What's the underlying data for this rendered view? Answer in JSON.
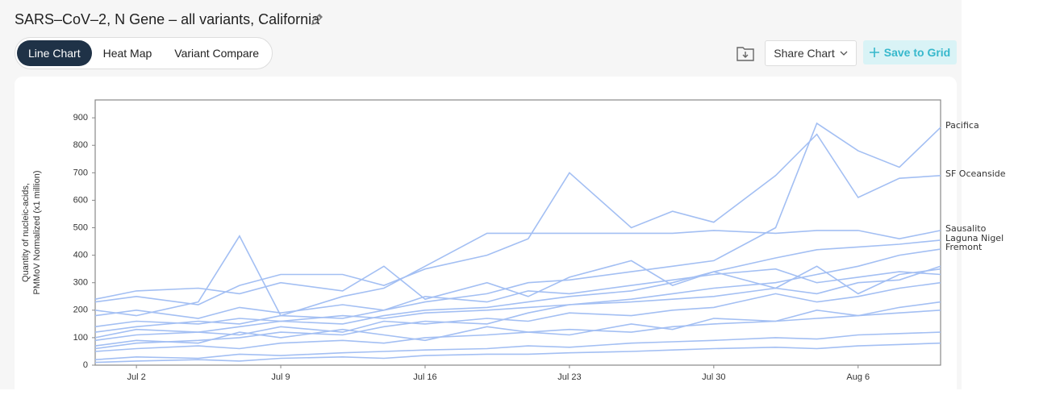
{
  "header": {
    "title": "SARS–CoV–2, N Gene – all variants, California",
    "tabs": [
      "Line Chart",
      "Heat Map",
      "Variant Compare"
    ],
    "active_tab": 0,
    "share_button": "Share Chart",
    "save_button": "Save to Grid"
  },
  "chart_data": {
    "type": "line",
    "y_label": [
      "Quantity of nucleic-acids,",
      "PMMoV Normalized (x1 million)"
    ],
    "x": [
      "Jun 30",
      "Jul 2",
      "Jul 5",
      "Jul 7",
      "Jul 9",
      "Jul 12",
      "Jul 14",
      "Jul 16",
      "Jul 19",
      "Jul 21",
      "Jul 23",
      "Jul 26",
      "Jul 28",
      "Jul 30",
      "Aug 2",
      "Aug 4",
      "Aug 6",
      "Aug 8",
      "Aug 10"
    ],
    "xlim": [
      "Jun 30",
      "Aug 10"
    ],
    "xticks": [
      "Jul 2",
      "Jul 9",
      "Jul 16",
      "Jul 23",
      "Jul 30",
      "Aug 6"
    ],
    "ylim": [
      0,
      965
    ],
    "yticks": [
      0,
      100,
      200,
      300,
      400,
      500,
      600,
      700,
      800,
      900
    ],
    "series": [
      {
        "name": "Pacifica",
        "color": "#a3bff3",
        "values": [
          120,
          140,
          160,
          150,
          180,
          170,
          200,
          230,
          260,
          300,
          310,
          340,
          360,
          380,
          500,
          880,
          780,
          720,
          865
        ]
      },
      {
        "name": "SF Oceanside",
        "color": "#a3bff3",
        "values": [
          230,
          250,
          220,
          290,
          330,
          330,
          290,
          350,
          400,
          460,
          700,
          500,
          560,
          520,
          690,
          840,
          610,
          680,
          690
        ]
      },
      {
        "name": "Sausalito",
        "color": "#a3bff3",
        "values": [
          200,
          180,
          230,
          470,
          180,
          250,
          280,
          360,
          480,
          480,
          480,
          480,
          480,
          490,
          480,
          490,
          490,
          460,
          490
        ]
      },
      {
        "name": "Laguna Nigel",
        "color": "#a3bff3",
        "values": [
          90,
          110,
          120,
          140,
          160,
          150,
          180,
          200,
          210,
          230,
          250,
          270,
          300,
          340,
          390,
          420,
          430,
          440,
          455
        ]
      },
      {
        "name": "Fremont",
        "color": "#a3bff3",
        "values": [
          60,
          80,
          90,
          100,
          120,
          110,
          140,
          160,
          150,
          190,
          220,
          240,
          260,
          280,
          300,
          330,
          360,
          400,
          422
        ]
      },
      {
        "color": "#a3bff3",
        "values": [
          20,
          30,
          25,
          40,
          35,
          45,
          50,
          55,
          60,
          70,
          65,
          80,
          85,
          90,
          100,
          95,
          110,
          115,
          120
        ]
      },
      {
        "color": "#a3bff3",
        "values": [
          180,
          200,
          170,
          210,
          190,
          220,
          200,
          250,
          230,
          270,
          260,
          290,
          310,
          330,
          350,
          300,
          320,
          340,
          330
        ]
      },
      {
        "color": "#a3bff3",
        "values": [
          100,
          130,
          120,
          110,
          140,
          120,
          160,
          150,
          170,
          160,
          190,
          180,
          200,
          210,
          260,
          230,
          250,
          280,
          300
        ]
      },
      {
        "color": "#a3bff3",
        "values": [
          50,
          60,
          70,
          60,
          80,
          90,
          80,
          100,
          110,
          120,
          130,
          120,
          140,
          150,
          160,
          170,
          180,
          190,
          200
        ]
      },
      {
        "color": "#a3bff3",
        "values": [
          140,
          160,
          150,
          170,
          160,
          180,
          170,
          190,
          200,
          210,
          220,
          230,
          240,
          250,
          280,
          260,
          300,
          310,
          360
        ]
      },
      {
        "color": "#a3bff3",
        "values": [
          10,
          15,
          20,
          15,
          25,
          30,
          25,
          35,
          40,
          40,
          45,
          50,
          55,
          60,
          65,
          60,
          70,
          75,
          80
        ]
      },
      {
        "color": "#a3bff3",
        "values": [
          240,
          270,
          280,
          260,
          300,
          270,
          360,
          240,
          300,
          250,
          320,
          380,
          290,
          340,
          280,
          360,
          260,
          330,
          350
        ]
      },
      {
        "color": "#a3bff3",
        "values": [
          70,
          90,
          80,
          120,
          100,
          130,
          110,
          90,
          140,
          120,
          110,
          150,
          130,
          170,
          160,
          200,
          180,
          210,
          230
        ]
      }
    ]
  }
}
